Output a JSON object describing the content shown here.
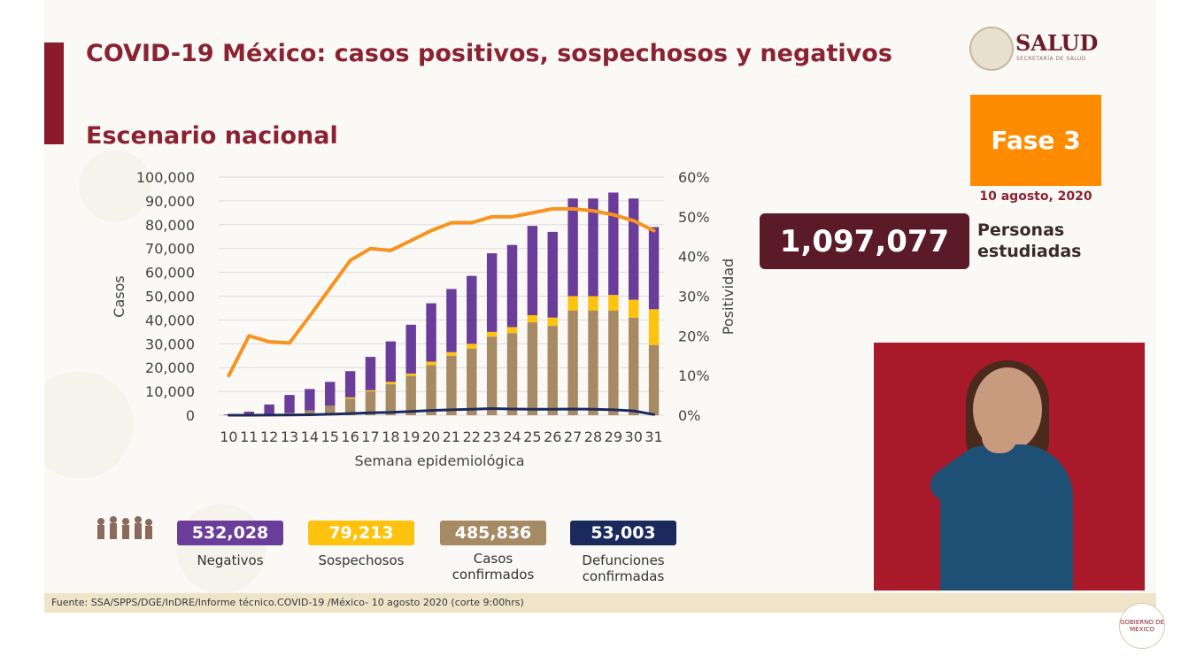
{
  "title": "COVID-19 México: casos positivos, sospechosos y negativos",
  "subtitle": "Escenario nacional",
  "logo": {
    "text": "SALUD",
    "subtext": "SECRETARÍA DE SALUD"
  },
  "phase": {
    "label": "Fase 3",
    "date": "10 agosto, 2020"
  },
  "studied": {
    "value": "1,097,077",
    "label": "Personas estudiadas"
  },
  "legend": [
    {
      "value": "532,028",
      "label": "Negativos",
      "color": "#6a3d9a"
    },
    {
      "value": "79,213",
      "label": "Sospechosos",
      "color": "#ffc20e"
    },
    {
      "value": "485,836",
      "label": "Casos confirmados",
      "color": "#a68a64"
    },
    {
      "value": "53,003",
      "label": "Defunciones confirmadas",
      "color": "#1b2a5c"
    }
  ],
  "footer": "Fuente: SSA/SPPS/DGE/InDRE/Informe técnico.COVID-19 /México- 10 agosto 2020 (corte 9:00hrs)",
  "badge": "GOBIERNO DE MÉXICO",
  "chart_data": {
    "type": "bar",
    "stacked": true,
    "xlabel": "Semana epidemiológica",
    "ylabel": "Casos",
    "y2label": "Positividad",
    "ylim": [
      0,
      100000
    ],
    "y2lim": [
      0,
      60
    ],
    "yticks": [
      "0",
      "10,000",
      "20,000",
      "30,000",
      "40,000",
      "50,000",
      "60,000",
      "70,000",
      "80,000",
      "90,000",
      "100,000"
    ],
    "y2ticks": [
      "0%",
      "10%",
      "20%",
      "30%",
      "40%",
      "50%",
      "60%"
    ],
    "categories": [
      "10",
      "11",
      "12",
      "13",
      "14",
      "15",
      "16",
      "17",
      "18",
      "19",
      "20",
      "21",
      "22",
      "23",
      "24",
      "25",
      "26",
      "27",
      "28",
      "29",
      "30",
      "31"
    ],
    "series": [
      {
        "name": "Casos confirmados",
        "color": "#a68a64",
        "values": [
          0,
          200,
          500,
          1000,
          2000,
          4000,
          7000,
          10000,
          13000,
          16500,
          21000,
          25000,
          28000,
          33000,
          34500,
          39000,
          37500,
          44000,
          44000,
          44000,
          41000,
          29500
        ]
      },
      {
        "name": "Sospechosos",
        "color": "#ffc20e",
        "values": [
          0,
          0,
          0,
          0,
          0,
          0,
          500,
          500,
          1000,
          1000,
          1500,
          1500,
          2000,
          2000,
          2500,
          3000,
          3500,
          6000,
          6000,
          6500,
          7500,
          15000
        ]
      },
      {
        "name": "Negativos",
        "color": "#6a3d9a",
        "values": [
          300,
          1300,
          4000,
          7500,
          9000,
          10000,
          11000,
          14000,
          17000,
          20500,
          24500,
          26500,
          28500,
          33000,
          34500,
          37500,
          36000,
          41000,
          41000,
          43000,
          42500,
          34500
        ]
      },
      {
        "name": "Positividad",
        "type": "line",
        "axis": "y2",
        "color": "#f7931e",
        "values": [
          10,
          20,
          18.5,
          18.2,
          25,
          32,
          39,
          42,
          41.5,
          44,
          46.5,
          48.5,
          48.5,
          50,
          50,
          51,
          52,
          52,
          51.5,
          50.5,
          49,
          46.5
        ]
      },
      {
        "name": "Defunciones confirmadas",
        "type": "line",
        "color": "#1b2a5c",
        "values": [
          0,
          0,
          50,
          100,
          200,
          400,
          700,
          1000,
          1200,
          1600,
          2000,
          2300,
          2500,
          2800,
          2600,
          2500,
          2500,
          2600,
          2500,
          2300,
          1800,
          300
        ]
      }
    ]
  }
}
